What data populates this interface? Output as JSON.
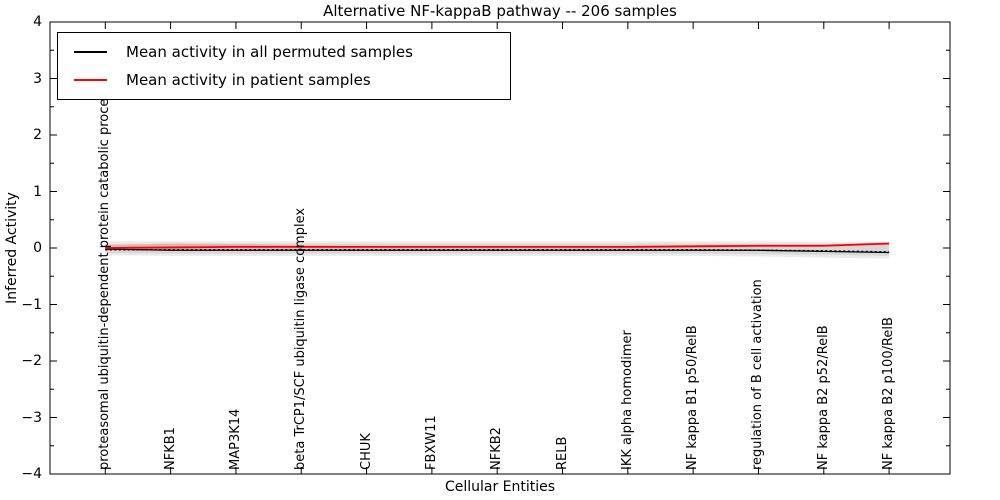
{
  "figure": {
    "title": "Alternative NF-kappaB pathway -- 206 samples"
  },
  "axes": {
    "xlabel": "Cellular Entities",
    "ylabel": "Inferred Activity",
    "ytick_labels": [
      "4",
      "3",
      "2",
      "1",
      "0",
      "−1",
      "−2",
      "−3",
      "−4"
    ]
  },
  "legend": {
    "entries": [
      {
        "label": "Mean activity in all permuted samples",
        "color": "#000000"
      },
      {
        "label": "Mean activity in patient samples",
        "color": "#ff0000"
      }
    ]
  },
  "chart_data": {
    "type": "line",
    "title": "Alternative NF-kappaB pathway -- 206 samples",
    "xlabel": "Cellular Entities",
    "ylabel": "Inferred Activity",
    "ylim": [
      -4,
      4
    ],
    "ytick_step": 1,
    "ytick_minor_step": 0.5,
    "grid": false,
    "legend_position": "upper left",
    "categories": [
      "proteasomal ubiquitin-dependent protein catabolic process",
      "NFKB1",
      "MAP3K14",
      "beta TrCP1/SCF ubiquitin ligase complex",
      "CHUK",
      "FBXW11",
      "NFKB2",
      "RELB",
      "IKK alpha homodimer",
      "NF kappa B1 p50/RelB",
      "regulation of B cell activation",
      "NF kappa B2 p52/RelB",
      "NF kappa B2 p100/RelB"
    ],
    "series": [
      {
        "name": "Mean activity in all permuted samples",
        "slug": "permuted-mean-line",
        "color": "#000000",
        "style": "solid",
        "width": 1.3,
        "values": [
          -0.02,
          -0.04,
          -0.04,
          -0.04,
          -0.04,
          -0.04,
          -0.04,
          -0.04,
          -0.04,
          -0.04,
          -0.04,
          -0.06,
          -0.08
        ]
      },
      {
        "name": "Mean activity in patient samples",
        "slug": "patient-mean-line",
        "color": "#ff0000",
        "style": "solid",
        "width": 1.8,
        "values": [
          0.0,
          0.01,
          0.02,
          0.02,
          0.02,
          0.02,
          0.02,
          0.02,
          0.02,
          0.03,
          0.04,
          0.04,
          0.08
        ]
      },
      {
        "name": "permuted dotted overlay",
        "slug": "permuted-overlay-dotted-line",
        "color": "#000000",
        "style": "dotted",
        "width": 1.5,
        "values": [
          -0.03,
          -0.03,
          -0.03,
          -0.03,
          -0.03,
          -0.03,
          -0.03,
          -0.03,
          -0.03,
          -0.03,
          -0.04,
          -0.05,
          -0.07
        ]
      }
    ],
    "bands": [
      {
        "name": "permuted-spread-outer-band",
        "color": "#000000",
        "opacity": 0.08,
        "upper": [
          0.12,
          0.12,
          0.12,
          0.12,
          0.12,
          0.12,
          0.12,
          0.12,
          0.12,
          0.12,
          0.12,
          0.11,
          0.1
        ],
        "lower": [
          -0.13,
          -0.14,
          -0.14,
          -0.14,
          -0.14,
          -0.14,
          -0.14,
          -0.14,
          -0.14,
          -0.14,
          -0.15,
          -0.17,
          -0.19
        ]
      },
      {
        "name": "permuted-spread-inner-band",
        "color": "#000000",
        "opacity": 0.08,
        "upper": [
          0.07,
          0.08,
          0.08,
          0.08,
          0.08,
          0.08,
          0.08,
          0.08,
          0.08,
          0.08,
          0.08,
          0.07,
          0.06
        ],
        "lower": [
          -0.09,
          -0.1,
          -0.1,
          -0.1,
          -0.1,
          -0.1,
          -0.1,
          -0.1,
          -0.1,
          -0.1,
          -0.11,
          -0.12,
          -0.14
        ]
      },
      {
        "name": "patient-spread-band",
        "color": "#ff0000",
        "opacity": 0.16,
        "upper": [
          0.05,
          0.08,
          0.07,
          0.05,
          0.04,
          0.03,
          0.03,
          0.03,
          0.03,
          0.03,
          0.04,
          0.06,
          0.1
        ],
        "lower": [
          -0.02,
          -0.02,
          -0.01,
          -0.01,
          -0.01,
          -0.01,
          -0.01,
          -0.01,
          -0.01,
          0.0,
          0.01,
          0.02,
          0.05
        ]
      }
    ]
  }
}
